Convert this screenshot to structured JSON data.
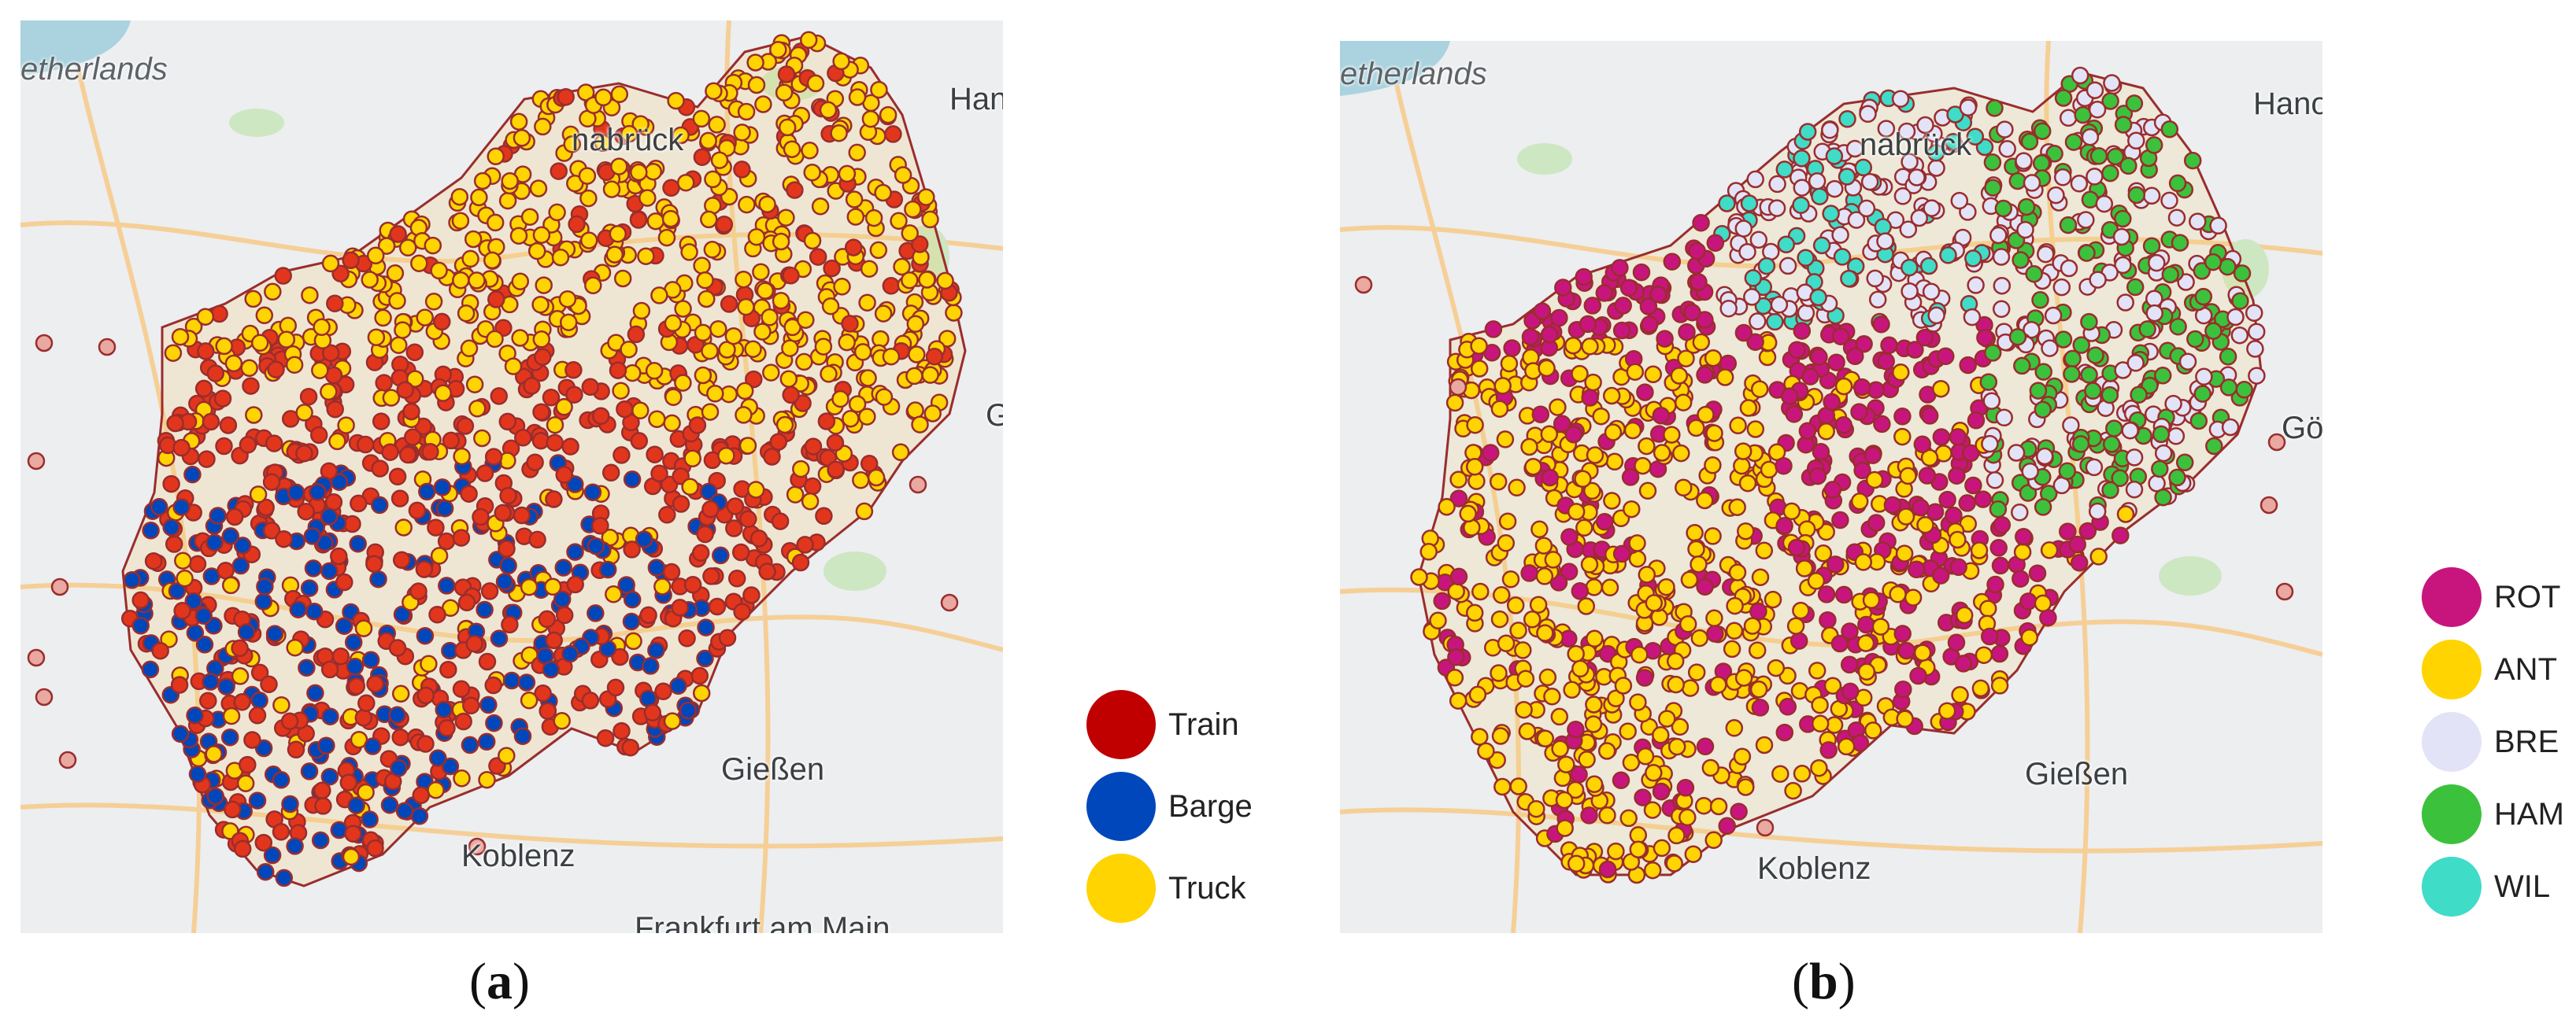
{
  "panel_a": {
    "caption_open": "(",
    "caption_letter": "a",
    "caption_close": ")",
    "map_labels": {
      "country": "etherlands",
      "city_north": "nabrück",
      "city_east": "Han",
      "city_east2": "G",
      "city_south_east": "Gießen",
      "city_south": "Koblenz",
      "city_bottom": "Frankfurt am Main"
    },
    "legend": [
      {
        "label": "Train",
        "color": "#c00000"
      },
      {
        "label": "Barge",
        "color": "#0047bb"
      },
      {
        "label": "Truck",
        "color": "#ffd400"
      }
    ]
  },
  "panel_b": {
    "caption_open": "(",
    "caption_letter": "b",
    "caption_close": ")",
    "map_labels": {
      "country": "etherlands",
      "city_north": "nabrück",
      "city_east": "Hano",
      "city_east2": "Gö",
      "city_south_east": "Gießen",
      "city_south": "Koblenz"
    },
    "legend": [
      {
        "label": "ROT",
        "color": "#c8157e"
      },
      {
        "label": "ANT",
        "color": "#ffd400"
      },
      {
        "label": "BRE",
        "color": "#e3e3f7"
      },
      {
        "label": "HAM",
        "color": "#3cc13c"
      },
      {
        "label": "WIL",
        "color": "#3fdcc8"
      }
    ]
  },
  "colors": {
    "map_bg": "#eceef0",
    "region_outline": "#9a2d2d",
    "road": "#f5c98a",
    "park": "#cfe8c4",
    "water": "#aad3df"
  }
}
